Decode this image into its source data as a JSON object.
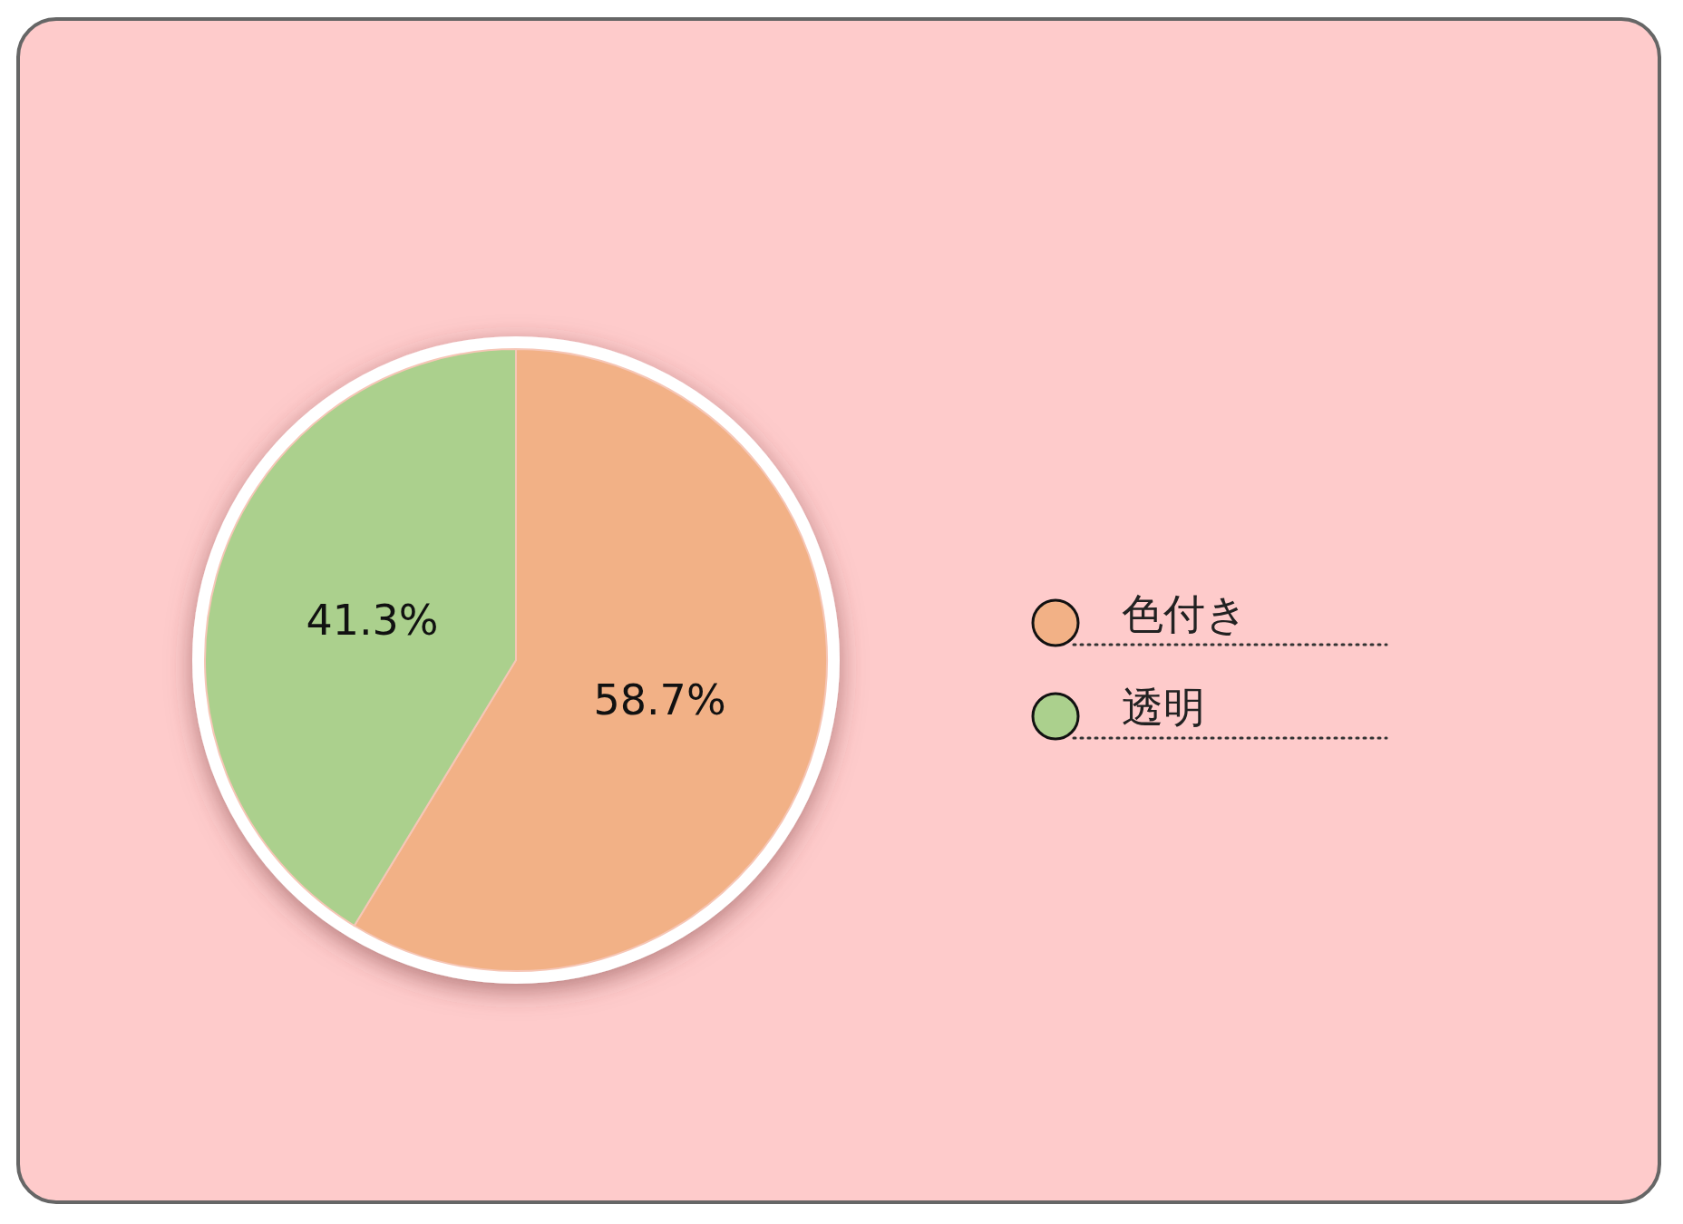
{
  "chart_data": {
    "type": "pie",
    "categories": [
      "色付き",
      "透明"
    ],
    "values": [
      58.7,
      41.3
    ],
    "colors": [
      "#f2b186",
      "#abd08d"
    ],
    "value_labels": [
      "58.7%",
      "41.3%"
    ],
    "legend": "right"
  }
}
